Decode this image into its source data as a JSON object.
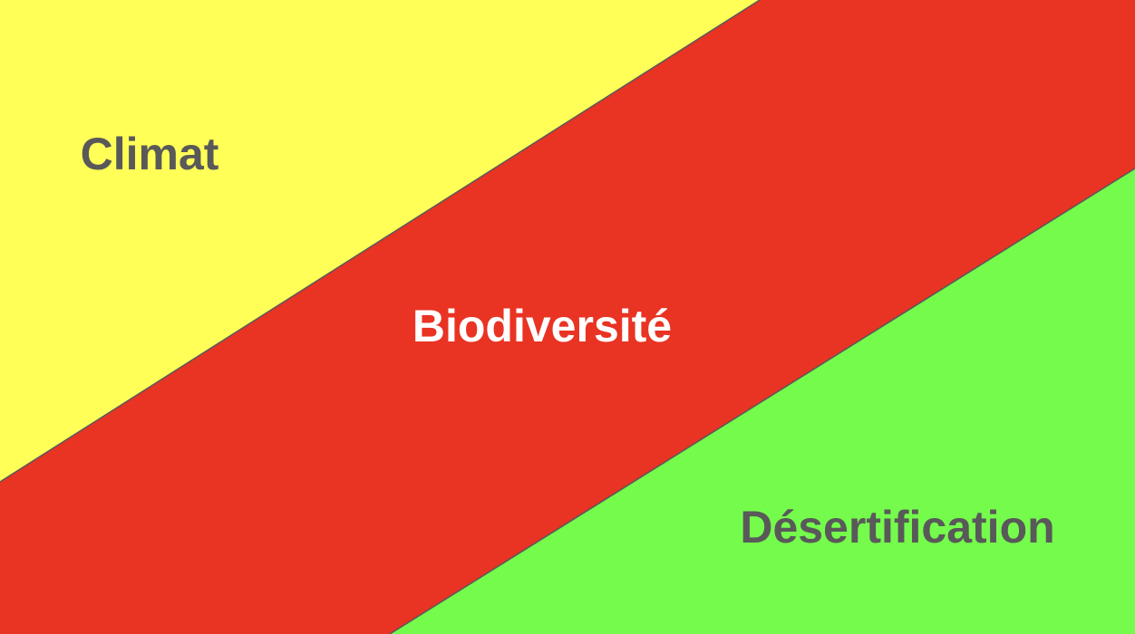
{
  "regions": [
    {
      "id": "climat",
      "label": "Climat",
      "fill": "#FFFF57",
      "text_color": "#595959"
    },
    {
      "id": "biodiversite",
      "label": "Biodiversité",
      "fill": "#E93323",
      "text_color": "#FFFFFF"
    },
    {
      "id": "desertification",
      "label": "Désertification",
      "fill": "#75FB4C",
      "text_color": "#595959"
    }
  ],
  "divider_color": "#595959"
}
